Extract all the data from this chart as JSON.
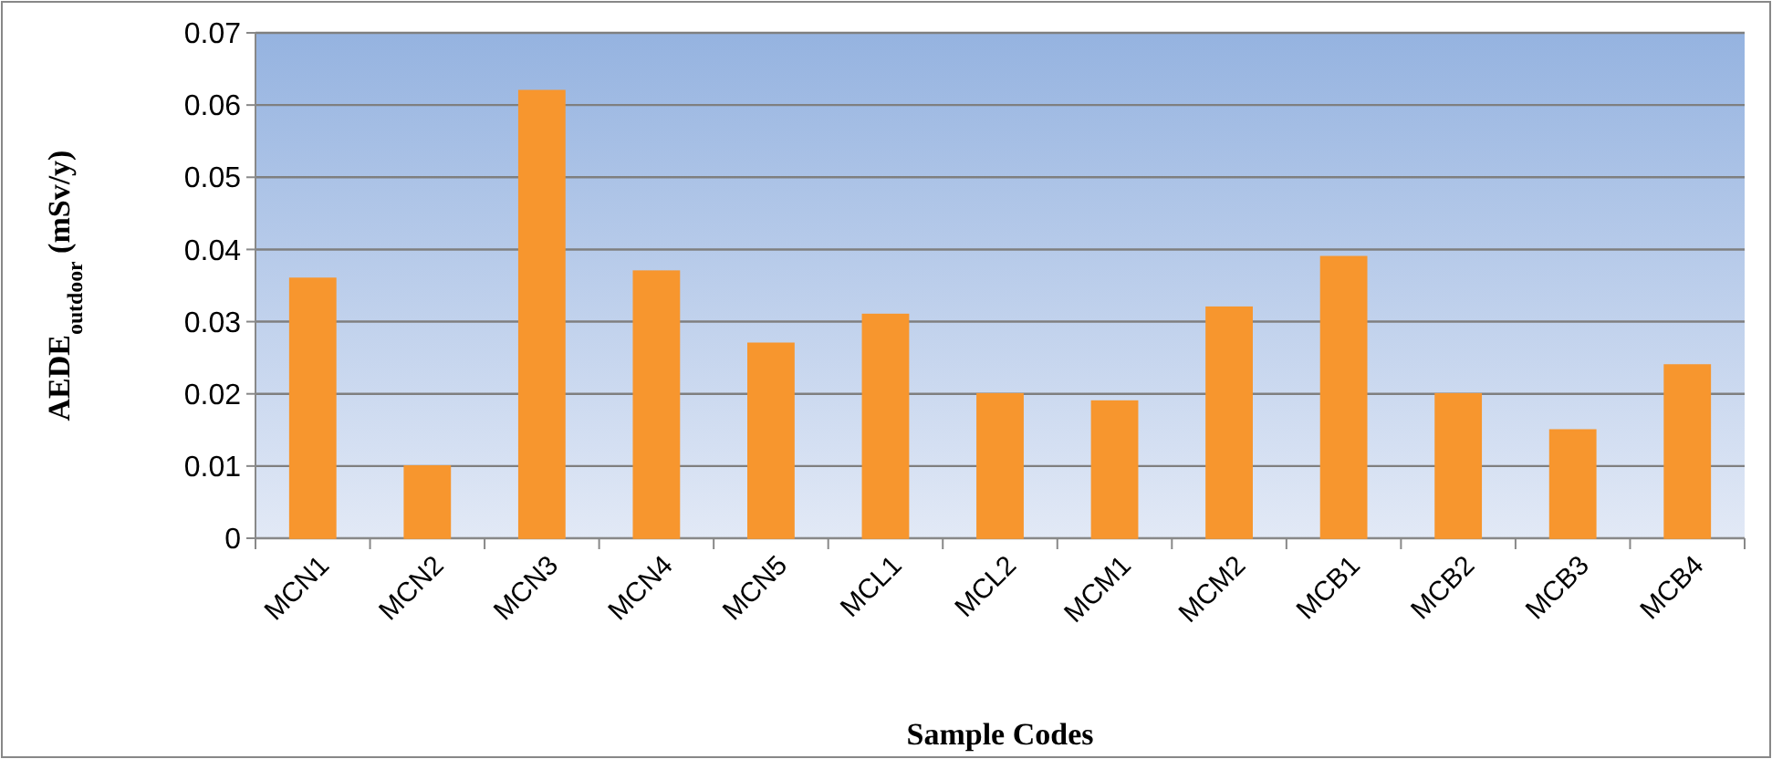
{
  "chart_data": {
    "type": "bar",
    "xlabel": "Sample Codes",
    "ylabel": "AEDE$_{outdoor}$ (mSv/y)",
    "categories": [
      "MCN1",
      "MCN2",
      "MCN3",
      "MCN4",
      "MCN5",
      "MCL1",
      "MCL2",
      "MCM1",
      "MCM2",
      "MCB1",
      "MCB2",
      "MCB3",
      "MCB4"
    ],
    "values": [
      0.036,
      0.01,
      0.062,
      0.037,
      0.027,
      0.031,
      0.02,
      0.019,
      0.032,
      0.039,
      0.02,
      0.015,
      0.024
    ],
    "color": "#f7962e",
    "ylim": [
      0,
      0.07
    ],
    "yticks": [
      0,
      0.01,
      0.02,
      0.03,
      0.04,
      0.05,
      0.06,
      0.07
    ],
    "grid": "y"
  }
}
